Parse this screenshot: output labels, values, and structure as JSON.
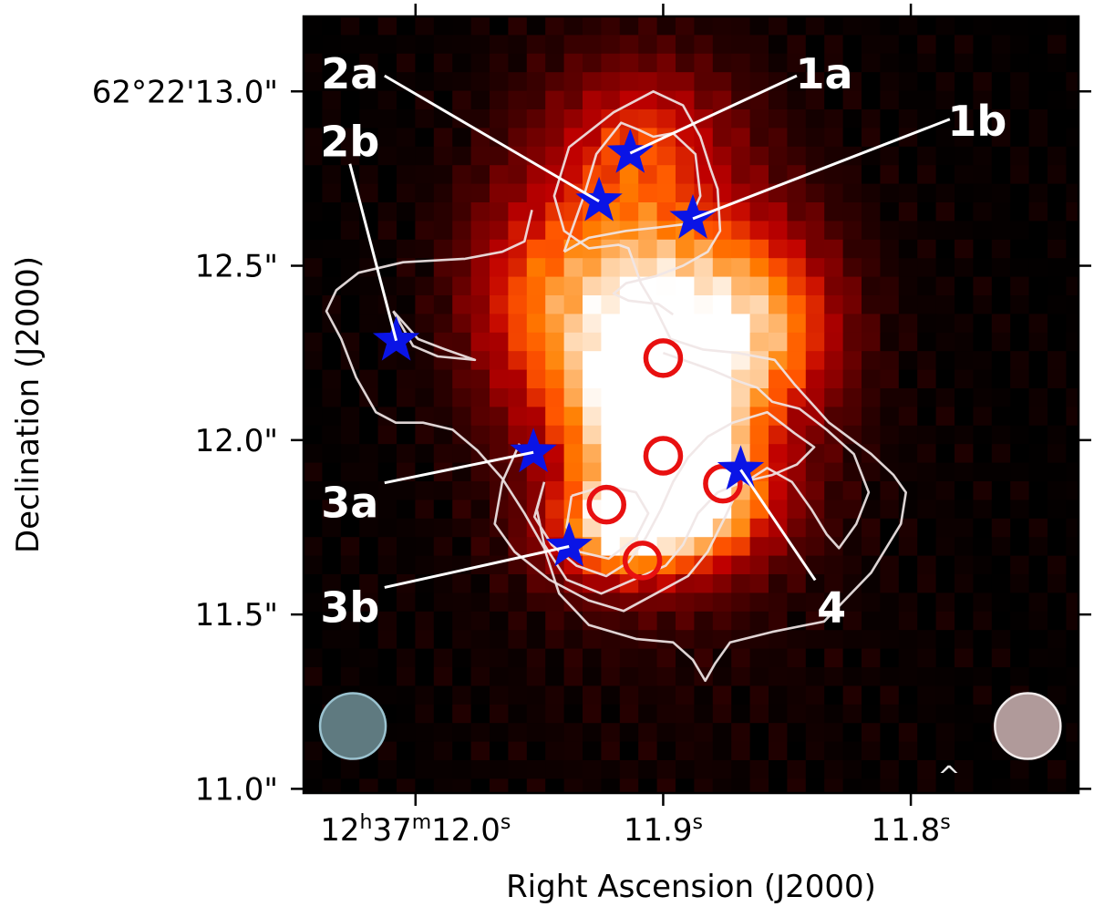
{
  "chart_data": {
    "type": "heatmap",
    "title": "",
    "xlabel": "Right Ascension (J2000)",
    "ylabel": "Declination (J2000)",
    "colormap": "gist_heat",
    "contour_color": "#f0e6e6",
    "x_ticks": [
      {
        "ra_s": 12.0,
        "prefix": "12",
        "h": "h",
        "mid": "37",
        "m": "m",
        "main": "12.0",
        "unit": "s"
      },
      {
        "ra_s": 11.9,
        "main": "11.9",
        "unit": "s"
      },
      {
        "ra_s": 11.8,
        "main": "11.8",
        "unit": "s"
      }
    ],
    "y_ticks": [
      {
        "dec": 13.0,
        "label": "62°22'13.0\""
      },
      {
        "dec": 12.5,
        "label": "12.5\""
      },
      {
        "dec": 12.0,
        "label": "12.0\""
      },
      {
        "dec": 11.5,
        "label": "11.5\""
      },
      {
        "dec": 11.0,
        "label": "11.0\""
      }
    ],
    "xlim_ra_s": [
      12.0452,
      11.7323
    ],
    "ylim_dec": [
      10.988,
      13.215
    ],
    "stars": [
      {
        "label": "1a",
        "ra": 11.9133,
        "dec": 12.823,
        "label_ra": 11.835,
        "label_dec": 13.05
      },
      {
        "label": "1b",
        "ra": 11.888,
        "dec": 12.635,
        "label_ra": 11.7732,
        "label_dec": 12.915
      },
      {
        "label": "2a",
        "ra": 11.9259,
        "dec": 12.685,
        "label_ra": 12.0265,
        "label_dec": 13.05
      },
      {
        "label": "2b",
        "ra": 12.0078,
        "dec": 12.285,
        "label_ra": 12.0265,
        "label_dec": 12.855
      },
      {
        "label": "3a",
        "ra": 11.9524,
        "dec": 11.965,
        "label_ra": 12.0265,
        "label_dec": 11.82
      },
      {
        "label": "3b",
        "ra": 11.938,
        "dec": 11.695,
        "label_ra": 12.0265,
        "label_dec": 11.52
      },
      {
        "label": "4",
        "ra": 11.8687,
        "dec": 11.915,
        "label_ra": 11.832,
        "label_dec": 11.52
      }
    ],
    "star_color": "#0a14e6",
    "circles": [
      {
        "ra": 11.9,
        "dec": 12.235
      },
      {
        "ra": 11.9,
        "dec": 11.955
      },
      {
        "ra": 11.8759,
        "dec": 11.875
      },
      {
        "ra": 11.9229,
        "dec": 11.815
      },
      {
        "ra": 11.9084,
        "dec": 11.655
      }
    ],
    "circle_color": "#e81010",
    "beams": [
      {
        "name": "left-beam",
        "ra": 12.0253,
        "dec": 11.18,
        "fill": "#5f7a80",
        "edge": "#9bc3d0"
      },
      {
        "name": "right-beam",
        "ra": 11.7528,
        "dec": 11.18,
        "fill": "#b09a9a",
        "edge": "#f2ecec"
      }
    ],
    "caret_mark": "^",
    "contours": [
      [
        [
          11.953,
          12.66
        ],
        [
          11.956,
          12.57
        ],
        [
          11.965,
          12.54
        ],
        [
          11.98,
          12.52
        ],
        [
          12.005,
          12.51
        ],
        [
          12.023,
          12.48
        ],
        [
          12.032,
          12.43
        ],
        [
          12.036,
          12.37
        ],
        [
          12.03,
          12.29
        ],
        [
          12.024,
          12.18
        ],
        [
          12.016,
          12.08
        ],
        [
          12.008,
          12.05
        ],
        [
          11.997,
          12.05
        ],
        [
          11.985,
          12.03
        ],
        [
          11.975,
          11.97
        ],
        [
          11.965,
          11.89
        ],
        [
          11.956,
          11.79
        ],
        [
          11.948,
          11.69
        ],
        [
          11.942,
          11.56
        ],
        [
          11.93,
          11.47
        ],
        [
          11.911,
          11.43
        ],
        [
          11.896,
          11.42
        ],
        [
          11.888,
          11.37
        ],
        [
          11.883,
          11.31
        ],
        [
          11.879,
          11.36
        ],
        [
          11.873,
          11.42
        ],
        [
          11.856,
          11.45
        ],
        [
          11.835,
          11.48
        ],
        [
          11.816,
          11.62
        ],
        [
          11.804,
          11.76
        ],
        [
          11.802,
          11.85
        ],
        [
          11.807,
          11.9
        ],
        [
          11.816,
          11.96
        ],
        [
          11.833,
          12.05
        ],
        [
          11.847,
          12.16
        ],
        [
          11.855,
          12.23
        ],
        [
          11.87,
          12.25
        ],
        [
          11.884,
          12.26
        ],
        [
          11.897,
          12.29
        ],
        [
          11.904,
          12.39
        ],
        [
          11.909,
          12.45
        ],
        [
          11.914,
          12.55
        ],
        [
          11.918,
          12.56
        ],
        [
          11.93,
          12.55
        ],
        [
          11.94,
          12.6
        ],
        [
          11.944,
          12.7
        ],
        [
          11.938,
          12.84
        ],
        [
          11.92,
          12.94
        ],
        [
          11.904,
          13.0
        ],
        [
          11.892,
          12.96
        ],
        [
          11.885,
          12.87
        ],
        [
          11.881,
          12.78
        ],
        [
          11.878,
          12.72
        ],
        [
          11.877,
          12.6
        ],
        [
          11.882,
          12.54
        ],
        [
          11.892,
          12.5
        ],
        [
          11.903,
          12.47
        ],
        [
          11.915,
          12.45
        ],
        [
          11.92,
          12.42
        ],
        [
          11.914,
          12.4
        ],
        [
          11.902,
          12.39
        ],
        [
          11.896,
          12.36
        ]
      ],
      [
        [
          11.94,
          12.54
        ],
        [
          11.932,
          12.7
        ],
        [
          11.927,
          12.82
        ],
        [
          11.917,
          12.91
        ],
        [
          11.91,
          12.89
        ],
        [
          11.904,
          12.87
        ],
        [
          11.896,
          12.88
        ],
        [
          11.887,
          12.82
        ],
        [
          11.885,
          12.7
        ],
        [
          11.89,
          12.62
        ],
        [
          11.902,
          12.61
        ],
        [
          11.915,
          12.6
        ],
        [
          11.93,
          12.58
        ],
        [
          11.94,
          12.54
        ]
      ],
      [
        [
          12.009,
          12.37
        ],
        [
          12.001,
          12.27
        ],
        [
          11.991,
          12.24
        ],
        [
          11.976,
          12.23
        ],
        [
          11.988,
          12.26
        ],
        [
          11.999,
          12.29
        ],
        [
          12.009,
          12.37
        ]
      ],
      [
        [
          11.958,
          11.99
        ],
        [
          11.965,
          11.88
        ],
        [
          11.968,
          11.76
        ],
        [
          11.96,
          11.68
        ],
        [
          11.946,
          11.6
        ],
        [
          11.93,
          11.54
        ],
        [
          11.916,
          11.51
        ],
        [
          11.903,
          11.56
        ],
        [
          11.89,
          11.61
        ],
        [
          11.882,
          11.68
        ],
        [
          11.875,
          11.78
        ],
        [
          11.869,
          11.87
        ],
        [
          11.858,
          11.92
        ],
        [
          11.848,
          11.88
        ],
        [
          11.84,
          11.8
        ],
        [
          11.834,
          11.73
        ],
        [
          11.829,
          11.69
        ],
        [
          11.822,
          11.76
        ],
        [
          11.817,
          11.85
        ],
        [
          11.823,
          11.96
        ],
        [
          11.834,
          12.03
        ],
        [
          11.845,
          12.09
        ],
        [
          11.856,
          12.11
        ],
        [
          11.862,
          12.15
        ],
        [
          11.87,
          12.17
        ],
        [
          11.88,
          12.2
        ],
        [
          11.892,
          12.23
        ],
        [
          11.9,
          12.25
        ]
      ],
      [
        [
          11.948,
          11.88
        ],
        [
          11.952,
          11.78
        ],
        [
          11.945,
          11.7
        ],
        [
          11.935,
          11.64
        ],
        [
          11.923,
          11.61
        ],
        [
          11.914,
          11.65
        ],
        [
          11.907,
          11.72
        ],
        [
          11.901,
          11.8
        ],
        [
          11.896,
          11.88
        ],
        [
          11.89,
          11.95
        ],
        [
          11.882,
          12.01
        ],
        [
          11.872,
          12.05
        ],
        [
          11.858,
          12.08
        ],
        [
          11.847,
          12.02
        ],
        [
          11.839,
          11.98
        ],
        [
          11.846,
          11.93
        ],
        [
          11.856,
          11.9
        ],
        [
          11.868,
          11.88
        ],
        [
          11.878,
          11.85
        ],
        [
          11.886,
          11.79
        ],
        [
          11.892,
          11.7
        ],
        [
          11.899,
          11.64
        ],
        [
          11.912,
          11.6
        ],
        [
          11.925,
          11.56
        ],
        [
          11.939,
          11.6
        ],
        [
          11.948,
          11.7
        ],
        [
          11.951,
          11.8
        ],
        [
          11.948,
          11.88
        ]
      ],
      [
        [
          11.937,
          11.84
        ],
        [
          11.939,
          11.75
        ],
        [
          11.934,
          11.68
        ],
        [
          11.922,
          11.66
        ],
        [
          11.911,
          11.72
        ],
        [
          11.906,
          11.79
        ],
        [
          11.911,
          11.85
        ],
        [
          11.923,
          11.87
        ],
        [
          11.937,
          11.84
        ]
      ]
    ]
  }
}
